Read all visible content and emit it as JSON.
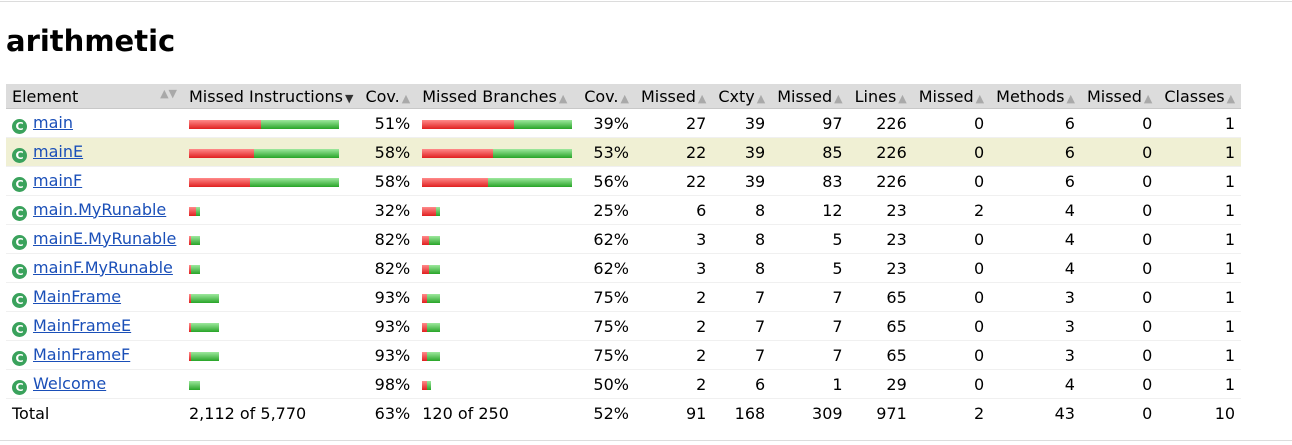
{
  "title": "arithmetic",
  "headers": {
    "element": "Element",
    "missed_instructions": "Missed Instructions",
    "cov1": "Cov.",
    "missed_branches": "Missed Branches",
    "cov2": "Cov.",
    "missed_cxty": "Missed",
    "cxty": "Cxty",
    "missed_lines": "Missed",
    "lines": "Lines",
    "missed_methods": "Missed",
    "methods": "Methods",
    "missed_classes": "Missed",
    "classes": "Classes"
  },
  "rows": [
    {
      "name": "main",
      "instr_missed": 0.48,
      "instr_cov": "51%",
      "br_missed": 0.61,
      "br_cov": "39%",
      "mc": "27",
      "cx": "39",
      "ml": "97",
      "li": "226",
      "mm": "0",
      "me": "6",
      "mcl": "0",
      "cl": "1",
      "instr_scale": 1.0,
      "br_scale": 1.0
    },
    {
      "name": "mainE",
      "instr_missed": 0.43,
      "instr_cov": "58%",
      "br_missed": 0.47,
      "br_cov": "53%",
      "mc": "22",
      "cx": "39",
      "ml": "85",
      "li": "226",
      "mm": "0",
      "me": "6",
      "mcl": "0",
      "cl": "1",
      "instr_scale": 1.0,
      "br_scale": 1.0
    },
    {
      "name": "mainF",
      "instr_missed": 0.41,
      "instr_cov": "58%",
      "br_missed": 0.44,
      "br_cov": "56%",
      "mc": "22",
      "cx": "39",
      "ml": "83",
      "li": "226",
      "mm": "0",
      "me": "6",
      "mcl": "0",
      "cl": "1",
      "instr_scale": 1.0,
      "br_scale": 1.0
    },
    {
      "name": "main.MyRunable",
      "instr_missed": 0.68,
      "instr_cov": "32%",
      "br_missed": 0.75,
      "br_cov": "25%",
      "mc": "6",
      "cx": "8",
      "ml": "12",
      "li": "23",
      "mm": "2",
      "me": "4",
      "mcl": "0",
      "cl": "1",
      "instr_scale": 0.07,
      "br_scale": 0.12
    },
    {
      "name": "mainE.MyRunable",
      "instr_missed": 0.18,
      "instr_cov": "82%",
      "br_missed": 0.38,
      "br_cov": "62%",
      "mc": "3",
      "cx": "8",
      "ml": "5",
      "li": "23",
      "mm": "0",
      "me": "4",
      "mcl": "0",
      "cl": "1",
      "instr_scale": 0.07,
      "br_scale": 0.12
    },
    {
      "name": "mainF.MyRunable",
      "instr_missed": 0.18,
      "instr_cov": "82%",
      "br_missed": 0.38,
      "br_cov": "62%",
      "mc": "3",
      "cx": "8",
      "ml": "5",
      "li": "23",
      "mm": "0",
      "me": "4",
      "mcl": "0",
      "cl": "1",
      "instr_scale": 0.07,
      "br_scale": 0.12
    },
    {
      "name": "MainFrame",
      "instr_missed": 0.07,
      "instr_cov": "93%",
      "br_missed": 0.25,
      "br_cov": "75%",
      "mc": "2",
      "cx": "7",
      "ml": "7",
      "li": "65",
      "mm": "0",
      "me": "3",
      "mcl": "0",
      "cl": "1",
      "instr_scale": 0.2,
      "br_scale": 0.12
    },
    {
      "name": "MainFrameE",
      "instr_missed": 0.07,
      "instr_cov": "93%",
      "br_missed": 0.25,
      "br_cov": "75%",
      "mc": "2",
      "cx": "7",
      "ml": "7",
      "li": "65",
      "mm": "0",
      "me": "3",
      "mcl": "0",
      "cl": "1",
      "instr_scale": 0.2,
      "br_scale": 0.12
    },
    {
      "name": "MainFrameF",
      "instr_missed": 0.07,
      "instr_cov": "93%",
      "br_missed": 0.25,
      "br_cov": "75%",
      "mc": "2",
      "cx": "7",
      "ml": "7",
      "li": "65",
      "mm": "0",
      "me": "3",
      "mcl": "0",
      "cl": "1",
      "instr_scale": 0.2,
      "br_scale": 0.12
    },
    {
      "name": "Welcome",
      "instr_missed": 0.02,
      "instr_cov": "98%",
      "br_missed": 0.5,
      "br_cov": "50%",
      "mc": "2",
      "cx": "6",
      "ml": "1",
      "li": "29",
      "mm": "0",
      "me": "4",
      "mcl": "0",
      "cl": "1",
      "instr_scale": 0.07,
      "br_scale": 0.06
    }
  ],
  "highlight_row": 1,
  "total": {
    "label": "Total",
    "instr": "2,112 of 5,770",
    "instr_cov": "63%",
    "br": "120 of 250",
    "br_cov": "52%",
    "mc": "91",
    "cx": "168",
    "ml": "309",
    "li": "971",
    "mm": "2",
    "me": "43",
    "mcl": "0",
    "cl": "10"
  },
  "colors": {
    "link": "#1a4fb8",
    "missed_bar": "#e02020",
    "covered_bar": "#28a428",
    "highlight": "#f0f0d4",
    "header_bg": "#dcdcdc"
  }
}
